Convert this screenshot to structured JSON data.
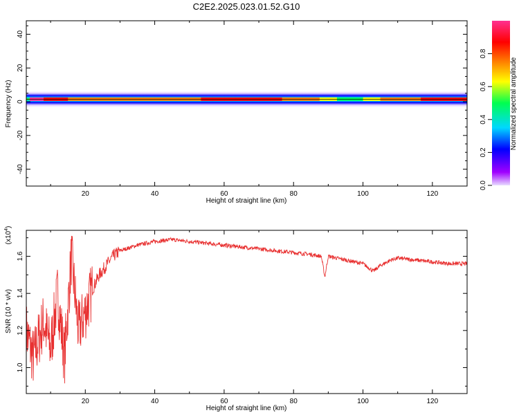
{
  "title": "C2E2.2025.023.01.52.G10",
  "chart_data": [
    {
      "type": "heatmap",
      "xlabel": "Height of straight line (km)",
      "ylabel": "Frequency (Hz)",
      "xlim": [
        3,
        130
      ],
      "ylim": [
        -50,
        48
      ],
      "xticks": [
        20,
        40,
        60,
        80,
        100,
        120
      ],
      "yticks": [
        -40,
        -20,
        0,
        20,
        40
      ],
      "colorbar": {
        "label": "Normalized spectral amplitude",
        "range": [
          0,
          1
        ],
        "ticks": [
          0.0,
          0.2,
          0.4,
          0.6,
          0.8
        ],
        "colormap": [
          "#d8bfff",
          "#a000ff",
          "#0000ff",
          "#00e0ff",
          "#00ff60",
          "#ffff00",
          "#ff8000",
          "#ff0000",
          "#ff3090"
        ]
      },
      "band": {
        "center_freq_hz": 1.5,
        "description_points": [
          {
            "x": 4,
            "amplitude": 1.0
          },
          {
            "x": 10,
            "amplitude": 0.9
          },
          {
            "x": 20,
            "amplitude": 0.7
          },
          {
            "x": 40,
            "amplitude": 0.75
          },
          {
            "x": 60,
            "amplitude": 0.85
          },
          {
            "x": 80,
            "amplitude": 0.8
          },
          {
            "x": 95,
            "amplitude": 0.5
          },
          {
            "x": 110,
            "amplitude": 0.8
          },
          {
            "x": 130,
            "amplitude": 0.85
          }
        ]
      }
    },
    {
      "type": "line",
      "xlabel": "Height of straight line (km)",
      "ylabel": "SNR (10 * v/v)",
      "multiplier": "(x10",
      "multiplier_exp": "4",
      "multiplier_close": ")",
      "xlim": [
        3,
        130
      ],
      "ylim": [
        0.86,
        1.74
      ],
      "xticks": [
        20,
        40,
        60,
        80,
        100,
        120
      ],
      "yticks": [
        1.0,
        1.2,
        1.4,
        1.6
      ],
      "color": "#e83030",
      "series": [
        {
          "x": [
            3,
            5,
            8,
            10,
            12,
            14,
            16,
            18,
            20,
            22,
            24,
            26,
            28,
            30,
            35,
            40,
            45,
            50,
            55,
            60,
            65,
            70,
            75,
            80,
            85,
            88,
            89,
            90,
            95,
            100,
            103,
            105,
            108,
            110,
            115,
            120,
            125,
            130
          ],
          "values": [
            1.2,
            1.05,
            1.25,
            1.1,
            1.4,
            1.05,
            1.6,
            1.2,
            1.3,
            1.42,
            1.5,
            1.55,
            1.6,
            1.63,
            1.66,
            1.68,
            1.69,
            1.68,
            1.67,
            1.66,
            1.65,
            1.64,
            1.63,
            1.62,
            1.61,
            1.6,
            1.49,
            1.6,
            1.58,
            1.56,
            1.52,
            1.55,
            1.58,
            1.59,
            1.58,
            1.57,
            1.56,
            1.56
          ]
        }
      ]
    }
  ]
}
